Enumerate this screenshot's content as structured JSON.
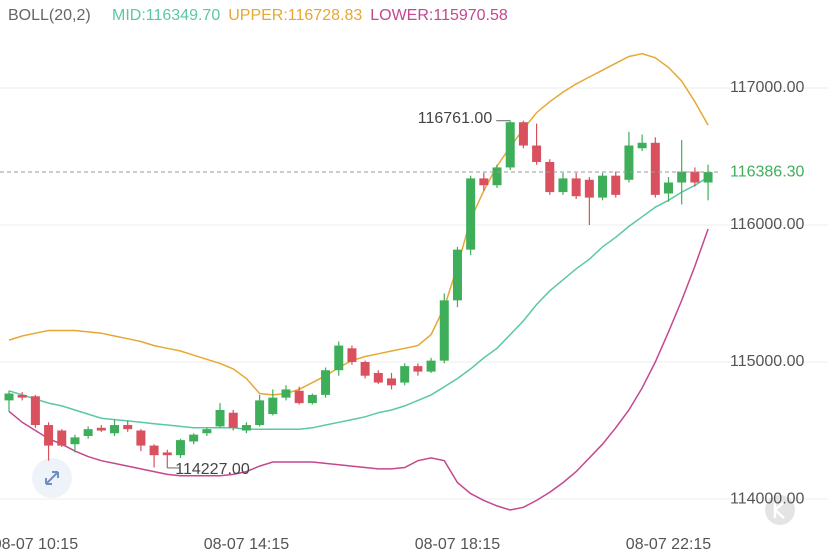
{
  "chart_data": {
    "type": "candlestick",
    "indicator": "BOLL(20,2)",
    "categories": [
      null,
      null,
      "08-07 10:15",
      null,
      null,
      null,
      null,
      null,
      null,
      null,
      null,
      null,
      null,
      null,
      null,
      null,
      null,
      null,
      "08-07 14:15",
      null,
      null,
      null,
      null,
      null,
      null,
      null,
      null,
      null,
      null,
      null,
      null,
      null,
      null,
      null,
      "08-07 18:15",
      null,
      null,
      null,
      null,
      null,
      null,
      null,
      null,
      null,
      null,
      null,
      null,
      null,
      null,
      null,
      "08-07 22:15",
      null,
      null,
      null
    ],
    "open": [
      114720,
      114760,
      114750,
      114540,
      114500,
      114400,
      114460,
      114520,
      114480,
      114540,
      114500,
      114390,
      114340,
      114320,
      114420,
      114480,
      114530,
      114630,
      114500,
      114540,
      114620,
      114740,
      114790,
      114700,
      114760,
      114940,
      115100,
      115000,
      114920,
      114880,
      114850,
      114970,
      114930,
      115010,
      115450,
      115820,
      116340,
      116290,
      116420,
      116750,
      116580,
      116460,
      116240,
      116340,
      116330,
      116200,
      116360,
      116330,
      116560,
      116600,
      116230,
      116310,
      116390,
      116310
    ],
    "high": [
      114790,
      114780,
      114760,
      114560,
      114510,
      114470,
      114530,
      114540,
      114580,
      114570,
      114510,
      114400,
      114360,
      114440,
      114480,
      114520,
      114700,
      114650,
      114560,
      114760,
      114800,
      114830,
      114820,
      114770,
      114960,
      115150,
      115120,
      115010,
      114940,
      114920,
      114990,
      114990,
      115030,
      115500,
      115840,
      116360,
      116380,
      116440,
      116761,
      116761,
      116740,
      116480,
      116380,
      116380,
      116350,
      116380,
      116390,
      116680,
      116660,
      116640,
      116350,
      116620,
      116420,
      116440
    ],
    "low": [
      114640,
      114720,
      114520,
      114280,
      114380,
      114340,
      114440,
      114490,
      114460,
      114490,
      114350,
      114230,
      114227,
      114300,
      114400,
      114460,
      114520,
      114500,
      114480,
      114530,
      114610,
      114720,
      114690,
      114690,
      114740,
      114900,
      114980,
      114880,
      114840,
      114800,
      114830,
      114900,
      114920,
      114990,
      115400,
      115780,
      116250,
      116270,
      116400,
      116560,
      116440,
      116220,
      116220,
      116190,
      116000,
      116180,
      116200,
      116310,
      116540,
      116200,
      116170,
      116150,
      116280,
      116180
    ],
    "close": [
      114770,
      114740,
      114540,
      114390,
      114390,
      114450,
      114510,
      114500,
      114540,
      114510,
      114390,
      114320,
      114320,
      114430,
      114470,
      114510,
      114650,
      114520,
      114540,
      114720,
      114740,
      114800,
      114700,
      114760,
      114940,
      115120,
      115000,
      114900,
      114850,
      114830,
      114970,
      114930,
      115010,
      115450,
      115820,
      116340,
      116290,
      116420,
      116750,
      116580,
      116460,
      116240,
      116340,
      116210,
      116200,
      116360,
      116220,
      116580,
      116600,
      116220,
      116310,
      116390,
      116310,
      116386.3
    ],
    "up_color": "#3fae5b",
    "down_color": "#d9505e",
    "series": [
      {
        "name": "MID:116349.70",
        "color": "#5ac8a5",
        "values": [
          114790,
          114760,
          114730,
          114700,
          114680,
          114650,
          114620,
          114590,
          114580,
          114570,
          114560,
          114550,
          114540,
          114530,
          114520,
          114520,
          114520,
          114520,
          114510,
          114510,
          114510,
          114510,
          114510,
          114520,
          114540,
          114560,
          114580,
          114600,
          114630,
          114650,
          114680,
          114720,
          114760,
          114820,
          114880,
          114950,
          115030,
          115100,
          115200,
          115300,
          115420,
          115520,
          115600,
          115680,
          115750,
          115840,
          115910,
          115990,
          116060,
          116130,
          116180,
          116240,
          116290,
          116349.7
        ]
      },
      {
        "name": "UPPER:116728.83",
        "color": "#e6a832",
        "values": [
          115160,
          115190,
          115210,
          115230,
          115230,
          115230,
          115220,
          115210,
          115190,
          115170,
          115150,
          115120,
          115100,
          115080,
          115050,
          115020,
          114990,
          114950,
          114880,
          114770,
          114760,
          114770,
          114800,
          114850,
          114900,
          114960,
          115010,
          115040,
          115060,
          115080,
          115100,
          115120,
          115200,
          115400,
          115700,
          116040,
          116250,
          116430,
          116570,
          116700,
          116820,
          116900,
          116970,
          117030,
          117080,
          117130,
          117180,
          117230,
          117250,
          117220,
          117150,
          117050,
          116900,
          116728.83
        ]
      },
      {
        "name": "LOWER:115970.58",
        "color": "#c4478f",
        "values": [
          114640,
          114560,
          114500,
          114440,
          114400,
          114350,
          114310,
          114280,
          114260,
          114240,
          114220,
          114200,
          114180,
          114170,
          114170,
          114170,
          114170,
          114180,
          114200,
          114240,
          114270,
          114270,
          114270,
          114270,
          114260,
          114250,
          114240,
          114230,
          114220,
          114220,
          114230,
          114280,
          114300,
          114280,
          114120,
          114040,
          113990,
          113950,
          113920,
          113940,
          113990,
          114050,
          114120,
          114200,
          114300,
          114400,
          114520,
          114650,
          114810,
          115000,
          115220,
          115450,
          115700,
          115970.58
        ]
      }
    ],
    "ylim": [
      113774,
      117642
    ],
    "yticks": [
      {
        "value": 114000,
        "label": "114000.00"
      },
      {
        "value": 115000,
        "label": "115000.00"
      },
      {
        "value": 116000,
        "label": "116000.00"
      },
      {
        "value": 117000,
        "label": "117000.00"
      }
    ],
    "grid": true,
    "last_price": {
      "value": 116386.3,
      "label": "116386.30"
    },
    "annotations": [
      {
        "text": "116761.00",
        "index": 38,
        "value": 116761
      },
      {
        "text": "114227.00",
        "index": 12,
        "value": 114227
      }
    ]
  }
}
